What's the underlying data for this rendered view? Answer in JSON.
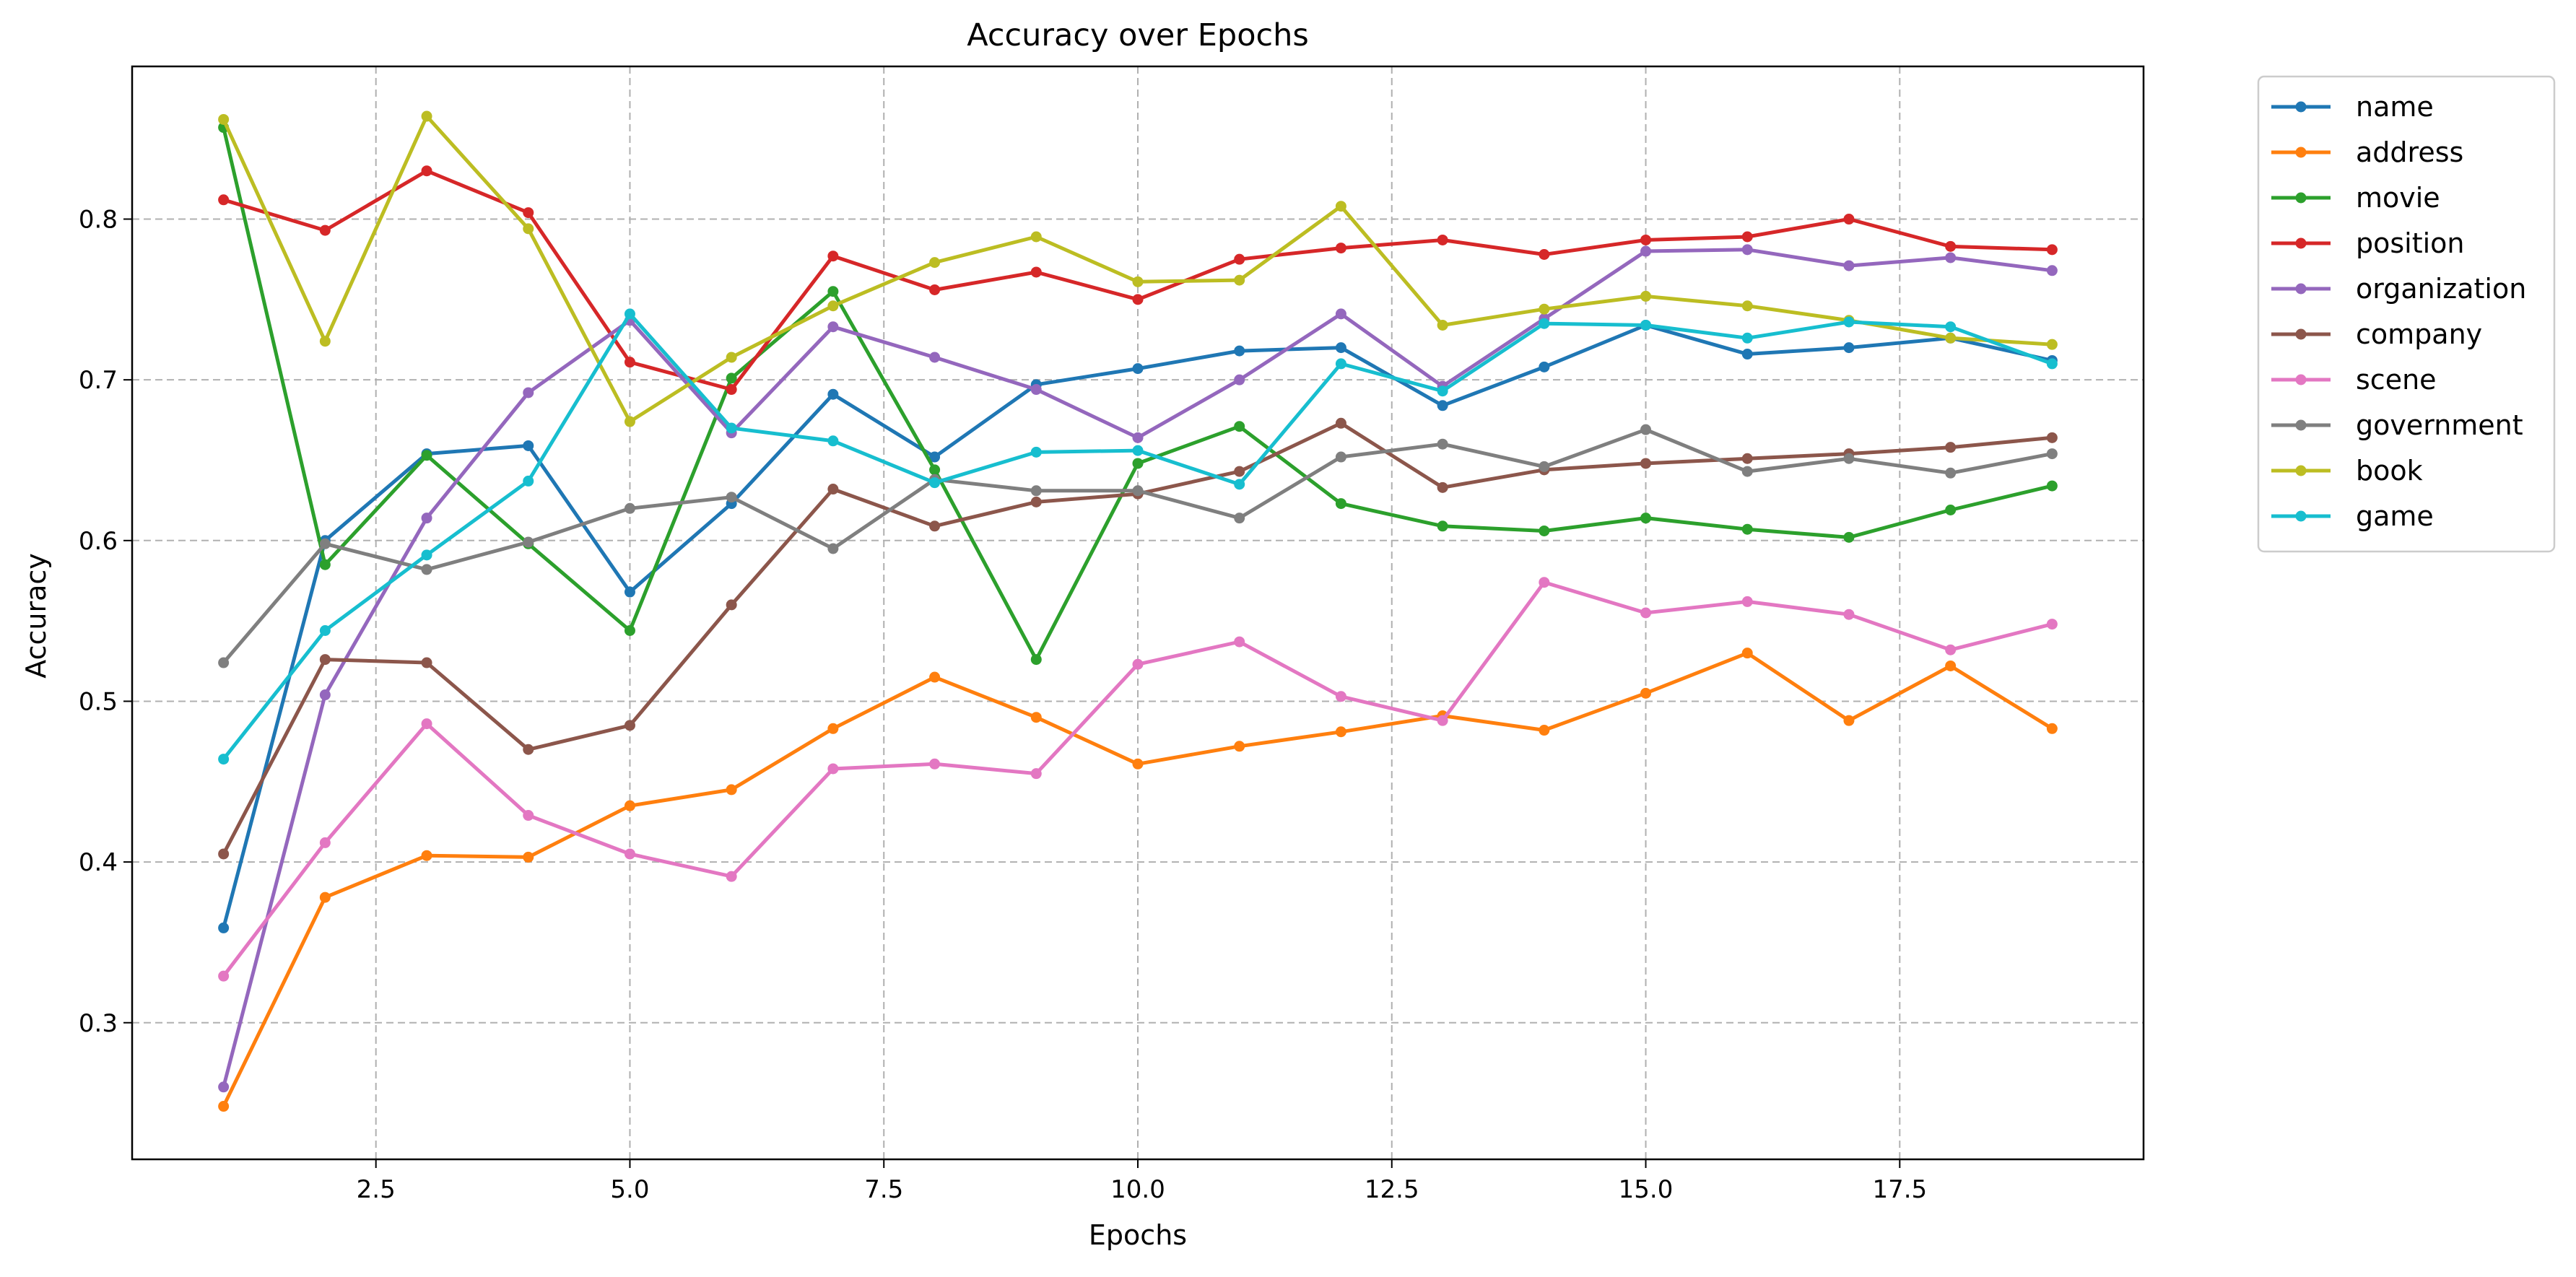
{
  "chart_data": {
    "type": "line",
    "title": "Accuracy over Epochs",
    "xlabel": "Epochs",
    "ylabel": "Accuracy",
    "xlim": [
      0.1,
      19.9
    ],
    "ylim": [
      0.215,
      0.895
    ],
    "xticks": [
      2.5,
      5.0,
      7.5,
      10.0,
      12.5,
      15.0,
      17.5
    ],
    "xtick_labels": [
      "2.5",
      "5.0",
      "7.5",
      "10.0",
      "12.5",
      "15.0",
      "17.5"
    ],
    "yticks": [
      0.3,
      0.4,
      0.5,
      0.6,
      0.7,
      0.8
    ],
    "ytick_labels": [
      "0.3",
      "0.4",
      "0.5",
      "0.6",
      "0.7",
      "0.8"
    ],
    "grid": true,
    "legend_position": "outside upper right",
    "x": [
      1,
      2,
      3,
      4,
      5,
      6,
      7,
      8,
      9,
      10,
      11,
      12,
      13,
      14,
      15,
      16,
      17,
      18,
      19
    ],
    "series": [
      {
        "name": "name",
        "color": "#1f77b4",
        "values": [
          0.359,
          0.6,
          0.654,
          0.659,
          0.568,
          0.623,
          0.691,
          0.652,
          0.697,
          0.707,
          0.718,
          0.72,
          0.684,
          0.708,
          0.734,
          0.716,
          0.72,
          0.726,
          0.712
        ]
      },
      {
        "name": "address",
        "color": "#ff7f0e",
        "values": [
          0.248,
          0.378,
          0.404,
          0.403,
          0.435,
          0.445,
          0.483,
          0.515,
          0.49,
          0.461,
          0.472,
          0.481,
          0.491,
          0.482,
          0.505,
          0.53,
          0.488,
          0.522,
          0.483
        ]
      },
      {
        "name": "movie",
        "color": "#2ca02c",
        "values": [
          0.857,
          0.585,
          0.653,
          0.598,
          0.544,
          0.701,
          0.755,
          0.644,
          0.526,
          0.648,
          0.671,
          0.623,
          0.609,
          0.606,
          0.614,
          0.607,
          0.602,
          0.619,
          0.634
        ]
      },
      {
        "name": "position",
        "color": "#d62728",
        "values": [
          0.812,
          0.793,
          0.83,
          0.804,
          0.711,
          0.694,
          0.777,
          0.756,
          0.767,
          0.75,
          0.775,
          0.782,
          0.787,
          0.778,
          0.787,
          0.789,
          0.8,
          0.783,
          0.781
        ]
      },
      {
        "name": "organization",
        "color": "#9467bd",
        "values": [
          0.26,
          0.504,
          0.614,
          0.692,
          0.737,
          0.667,
          0.733,
          0.714,
          0.694,
          0.664,
          0.7,
          0.741,
          0.696,
          0.738,
          0.78,
          0.781,
          0.771,
          0.776,
          0.768
        ]
      },
      {
        "name": "company",
        "color": "#8c564b",
        "values": [
          0.405,
          0.526,
          0.524,
          0.47,
          0.485,
          0.56,
          0.632,
          0.609,
          0.624,
          0.629,
          0.643,
          0.673,
          0.633,
          0.644,
          0.648,
          0.651,
          0.654,
          0.658,
          0.664
        ]
      },
      {
        "name": "scene",
        "color": "#e377c2",
        "values": [
          0.329,
          0.412,
          0.486,
          0.429,
          0.405,
          0.391,
          0.458,
          0.461,
          0.455,
          0.523,
          0.537,
          0.503,
          0.488,
          0.574,
          0.555,
          0.562,
          0.554,
          0.532,
          0.548
        ]
      },
      {
        "name": "government",
        "color": "#7f7f7f",
        "values": [
          0.524,
          0.598,
          0.582,
          0.599,
          0.62,
          0.627,
          0.595,
          0.638,
          0.631,
          0.631,
          0.614,
          0.652,
          0.66,
          0.646,
          0.669,
          0.643,
          0.651,
          0.642,
          0.654
        ]
      },
      {
        "name": "book",
        "color": "#bcbd22",
        "values": [
          0.862,
          0.724,
          0.864,
          0.794,
          0.674,
          0.714,
          0.746,
          0.773,
          0.789,
          0.761,
          0.762,
          0.808,
          0.734,
          0.744,
          0.752,
          0.746,
          0.737,
          0.726,
          0.722
        ]
      },
      {
        "name": "game",
        "color": "#17becf",
        "values": [
          0.464,
          0.544,
          0.591,
          0.637,
          0.741,
          0.67,
          0.662,
          0.636,
          0.655,
          0.656,
          0.635,
          0.71,
          0.693,
          0.735,
          0.734,
          0.726,
          0.736,
          0.733,
          0.71
        ]
      }
    ]
  }
}
